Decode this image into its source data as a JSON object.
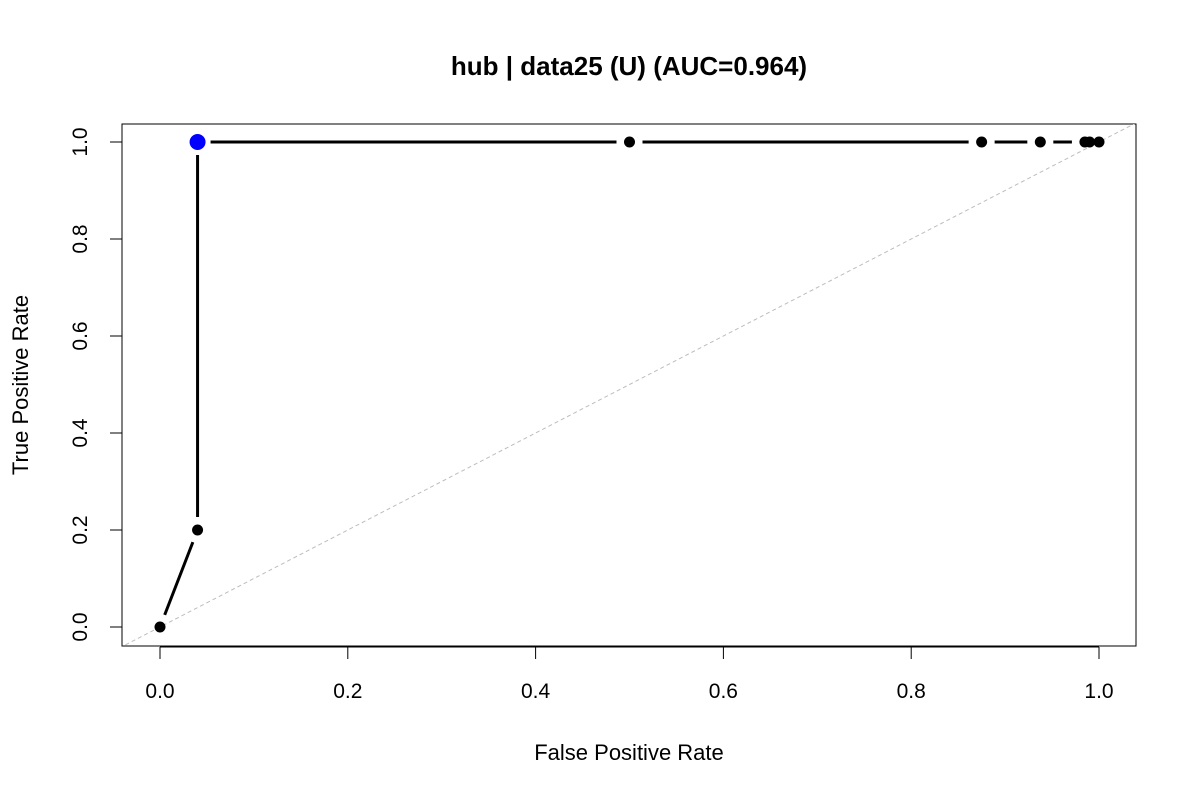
{
  "chart_data": {
    "type": "line",
    "title": "hub | data25 (U) (AUC=0.964)",
    "xlabel": "False Positive Rate",
    "ylabel": "True Positive Rate",
    "xlim": [
      0,
      1
    ],
    "ylim": [
      0,
      1
    ],
    "xticks": [
      "0.0",
      "0.2",
      "0.4",
      "0.6",
      "0.8",
      "1.0"
    ],
    "yticks": [
      "0.0",
      "0.2",
      "0.4",
      "0.6",
      "0.8",
      "1.0"
    ],
    "series": [
      {
        "name": "ROC",
        "color": "#000000",
        "x": [
          0.0,
          0.04,
          0.04,
          0.5,
          0.875,
          0.9375,
          0.985,
          0.99,
          1.0
        ],
        "y": [
          0.0,
          0.2,
          1.0,
          1.0,
          1.0,
          1.0,
          1.0,
          1.0,
          1.0
        ]
      }
    ],
    "highlight_point": {
      "x": 0.04,
      "y": 1.0,
      "color": "#0000ff"
    },
    "reference_line": {
      "from": [
        0,
        0
      ],
      "to": [
        1,
        1
      ],
      "color": "#bdbdbd"
    }
  }
}
